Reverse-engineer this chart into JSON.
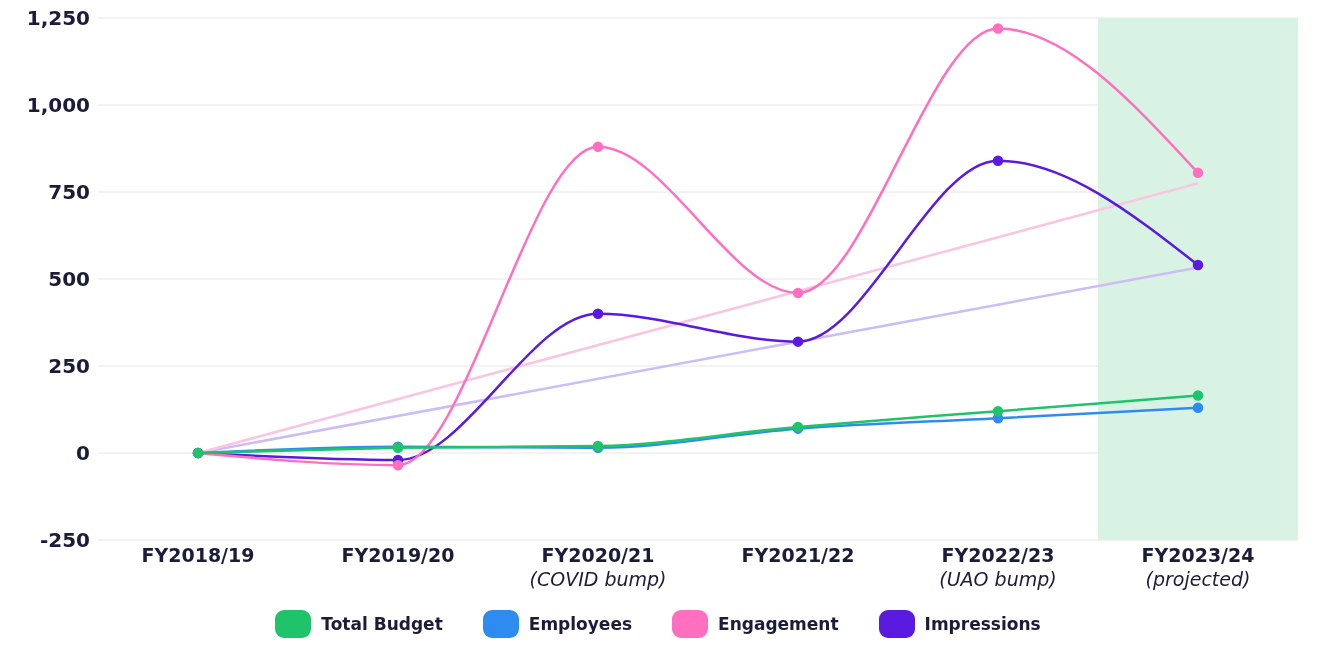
{
  "chart_data": {
    "type": "line",
    "categories": [
      "FY2018/19",
      "FY2019/20",
      "FY2020/21\n(COVID bump)",
      "FY2021/22",
      "FY2022/23\n(UAO bump)",
      "FY2023/24\n(projected)"
    ],
    "series": [
      {
        "name": "Total Budget",
        "color": "#1fc46a",
        "values": [
          0,
          15,
          20,
          75,
          120,
          165
        ]
      },
      {
        "name": "Employees",
        "color": "#2e8cf0",
        "values": [
          0,
          18,
          15,
          70,
          100,
          130
        ]
      },
      {
        "name": "Engagement",
        "color": "#ff6fc0",
        "values": [
          0,
          -35,
          880,
          460,
          1220,
          805
        ]
      },
      {
        "name": "Impressions",
        "color": "#5b1ae0",
        "values": [
          0,
          -20,
          400,
          320,
          840,
          540
        ]
      },
      {
        "color": "#f9c6e2",
        "values": [
          0,
          null,
          null,
          null,
          null,
          775
        ],
        "marker": "none"
      },
      {
        "color": "#cdbdf6",
        "values": [
          0,
          null,
          null,
          null,
          null,
          533
        ],
        "marker": "none"
      }
    ],
    "ylim": [
      -250,
      1250
    ],
    "yticks": [
      -250,
      0,
      250,
      500,
      750,
      {
        "value": 1000,
        "label": "1,000"
      },
      {
        "value": 1250,
        "label": "1,250"
      }
    ],
    "bands": [
      {
        "axis": "x",
        "from": "FY2023/24\n(projected)",
        "to": "FY2023/24\n(projected)",
        "color": "#d8f3e3"
      }
    ],
    "grid": "y",
    "legend": "bottom",
    "marker": "circle",
    "line_style": "solid"
  }
}
